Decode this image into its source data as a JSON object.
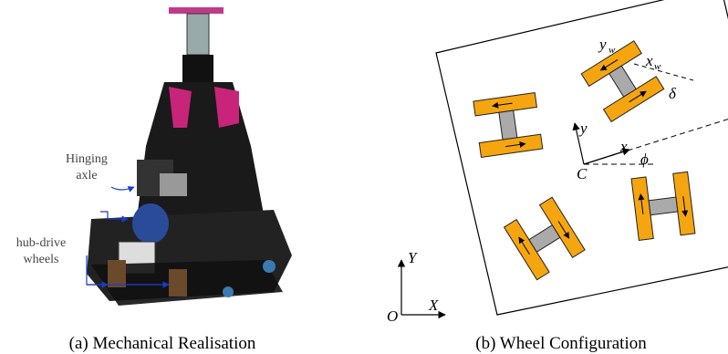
{
  "figures": [
    {
      "caption": "(a) Mechanical Realisation",
      "annotations": [
        {
          "lines": [
            "Hinging",
            "axle"
          ]
        },
        {
          "lines": [
            "hub-drive",
            "wheels"
          ]
        }
      ]
    },
    {
      "caption": "(b) Wheel Configuration",
      "labels": {
        "y_w": "y",
        "y_w_sub": "w",
        "x_w": "x",
        "x_w_sub": "w",
        "delta": "δ",
        "y": "y",
        "x": "x",
        "C": "C",
        "phi": "ϕ",
        "Y": "Y",
        "X": "X",
        "O": "O"
      }
    }
  ]
}
